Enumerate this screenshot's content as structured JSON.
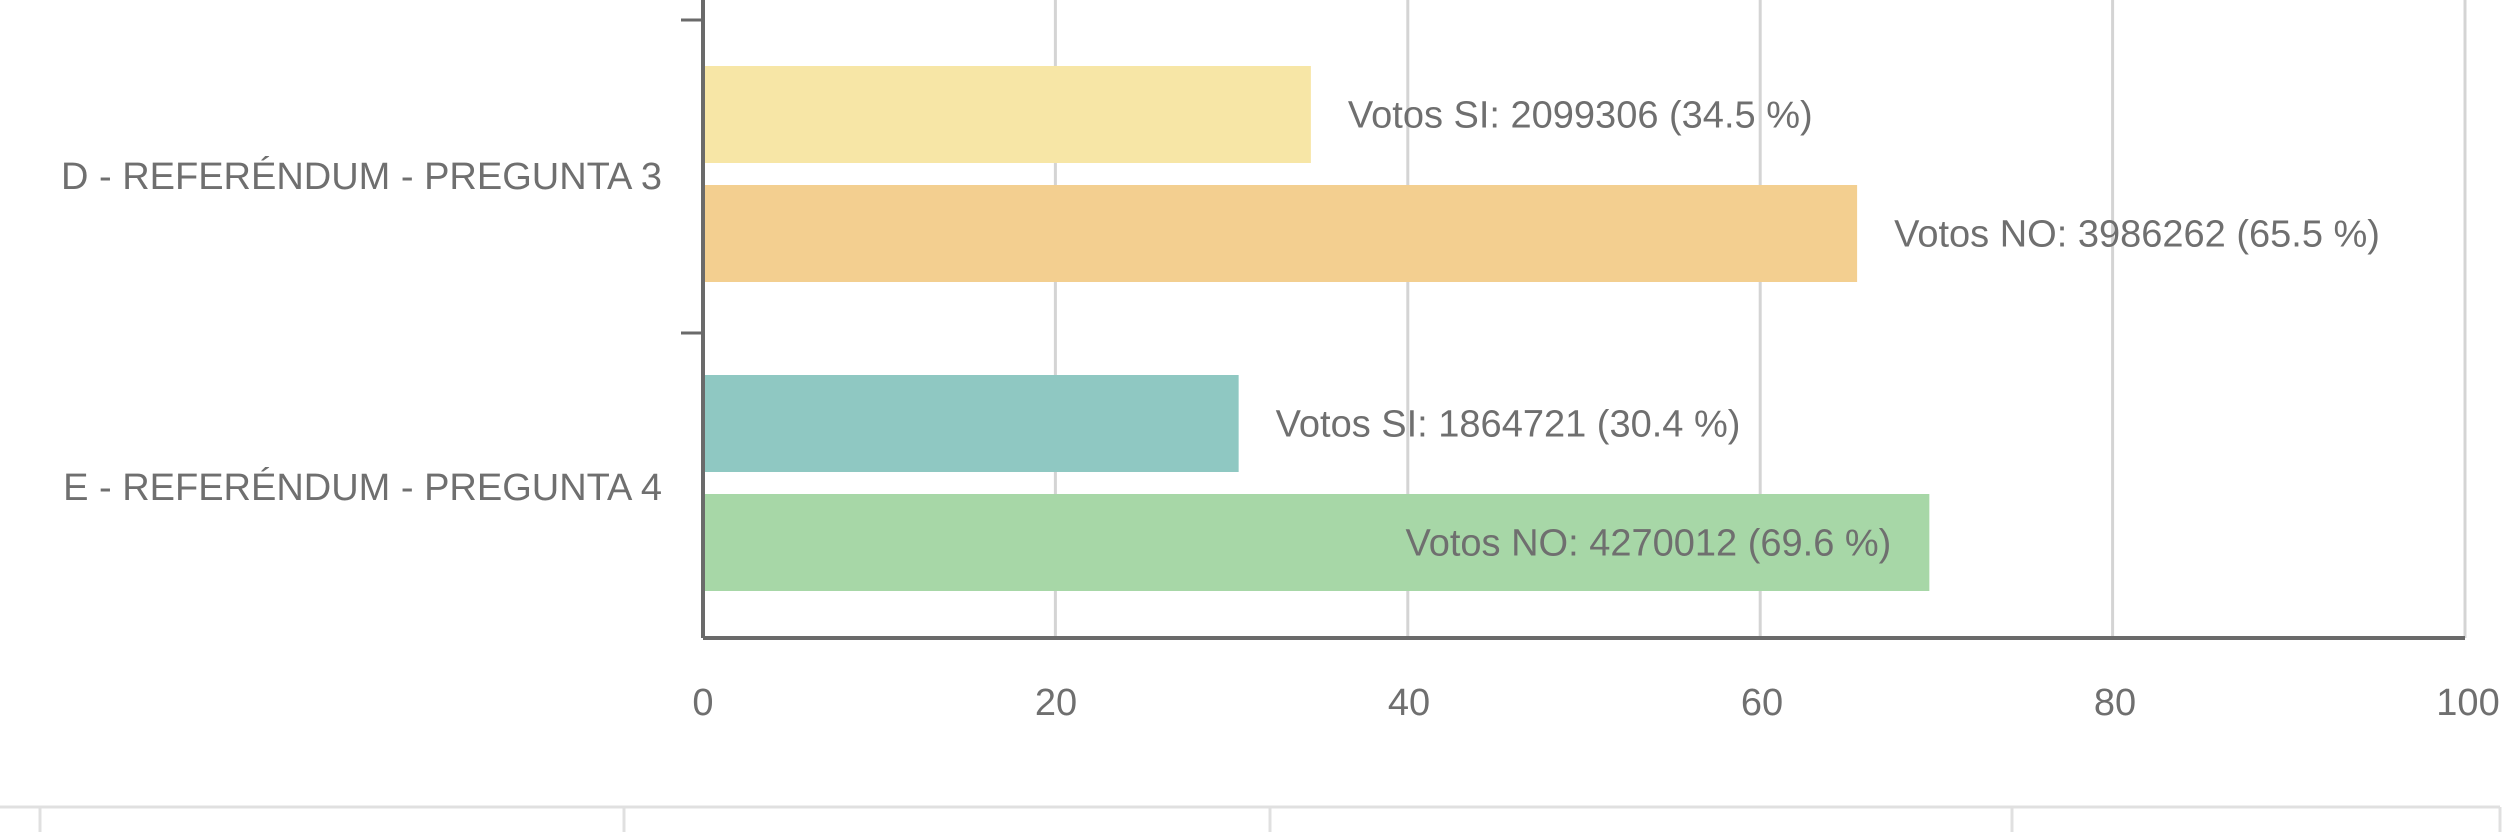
{
  "chart_data": {
    "type": "bar",
    "orientation": "horizontal",
    "categories": [
      "D - REFERÉNDUM - PREGUNTA 3",
      "E - REFERÉNDUM - PREGUNTA 4"
    ],
    "bars": [
      {
        "category": 0,
        "name": "Votos SI",
        "value": 34.5,
        "label": "Votos SI: 2099306 (34.5 %)",
        "color": "#f7e6a6",
        "label_inside": false
      },
      {
        "category": 0,
        "name": "Votos NO",
        "value": 65.5,
        "label": "Votos NO: 3986262 (65.5 %)",
        "color": "#f3cf90",
        "label_inside": false
      },
      {
        "category": 1,
        "name": "Votos SI",
        "value": 30.4,
        "label": "Votos SI: 1864721 (30.4 %)",
        "color": "#8fc8c2",
        "label_inside": false
      },
      {
        "category": 1,
        "name": "Votos NO",
        "value": 69.6,
        "label": "Votos NO: 4270012 (69.6 %)",
        "color": "#a7d7a7",
        "label_inside": true
      }
    ],
    "xlim": [
      0,
      100
    ],
    "xticks": [
      "0",
      "20",
      "40",
      "60",
      "80",
      "100"
    ],
    "grid": true,
    "title": "",
    "xlabel": "",
    "ylabel": ""
  }
}
